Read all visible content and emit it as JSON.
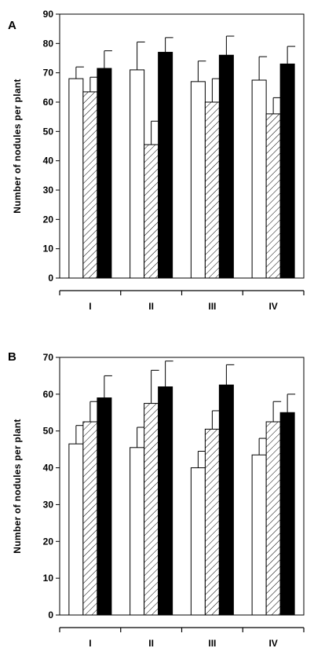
{
  "chart_data": [
    {
      "panel": "A",
      "type": "bar",
      "categories": [
        "I",
        "II",
        "III",
        "IV"
      ],
      "ylabel": "Number of nodules per plant",
      "xlabel": "",
      "ylim": [
        0,
        90
      ],
      "yticks": [
        0,
        10,
        20,
        30,
        40,
        50,
        60,
        70,
        80,
        90
      ],
      "bar_styles": [
        "white",
        "hatched",
        "black"
      ],
      "series": [
        {
          "values": [
            68,
            71,
            67,
            67.5
          ],
          "errors": [
            4,
            9.5,
            7,
            8
          ]
        },
        {
          "values": [
            63.5,
            45.5,
            60,
            56
          ],
          "errors": [
            5,
            8,
            8,
            5.5
          ]
        },
        {
          "values": [
            71.5,
            77,
            76,
            73
          ],
          "errors": [
            6,
            5,
            6.5,
            6
          ]
        }
      ]
    },
    {
      "panel": "B",
      "type": "bar",
      "categories": [
        "I",
        "II",
        "III",
        "IV"
      ],
      "ylabel": "Number of nodules per plant",
      "xlabel": "",
      "ylim": [
        0,
        70
      ],
      "yticks": [
        0,
        10,
        20,
        30,
        40,
        50,
        60,
        70
      ],
      "bar_styles": [
        "white",
        "hatched",
        "black"
      ],
      "series": [
        {
          "values": [
            46.5,
            45.5,
            40,
            43.5
          ],
          "errors": [
            5,
            5.5,
            4.5,
            4.5
          ]
        },
        {
          "values": [
            52.5,
            57.5,
            50.5,
            52.5
          ],
          "errors": [
            5.5,
            9,
            5,
            5.5
          ]
        },
        {
          "values": [
            59,
            62,
            62.5,
            55
          ],
          "errors": [
            6,
            7,
            5.5,
            5
          ]
        }
      ]
    }
  ]
}
